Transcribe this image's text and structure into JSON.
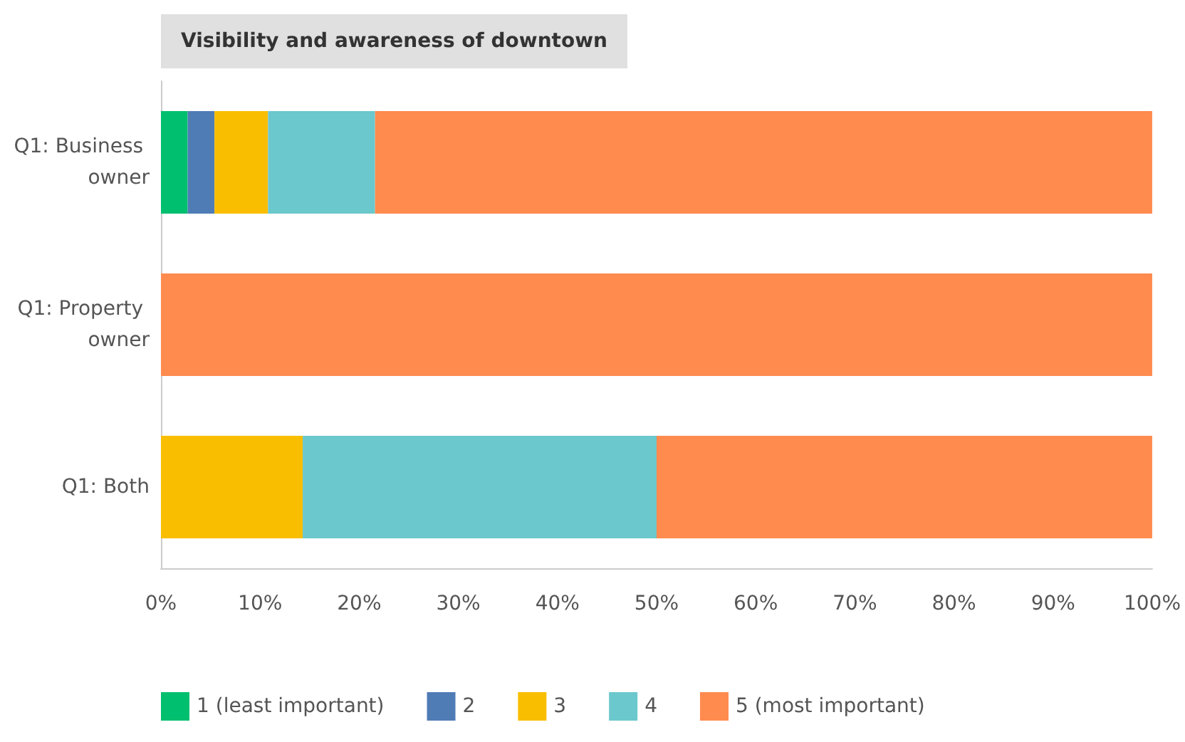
{
  "chart_data": {
    "type": "bar",
    "orientation": "horizontal",
    "stacked": true,
    "title": "Visibility and awareness of downtown",
    "categories": [
      "Q1: Business owner",
      "Q1: Property owner",
      "Q1: Both"
    ],
    "series": [
      {
        "name": "1 (least important)",
        "color": "#00bf6f",
        "values": [
          2.7,
          0,
          0
        ]
      },
      {
        "name": "2",
        "color": "#507cb6",
        "values": [
          2.7,
          0,
          0
        ]
      },
      {
        "name": "3",
        "color": "#f9be00",
        "values": [
          5.4,
          0,
          14.3
        ]
      },
      {
        "name": "4",
        "color": "#6bc8cd",
        "values": [
          10.8,
          0,
          35.7
        ]
      },
      {
        "name": "5 (most important)",
        "color": "#ff8b4f",
        "values": [
          78.4,
          100,
          50
        ]
      }
    ],
    "xlim": [
      0,
      100
    ],
    "xticks": [
      {
        "value": 0,
        "label": "0%"
      },
      {
        "value": 10,
        "label": "10%"
      },
      {
        "value": 20,
        "label": "20%"
      },
      {
        "value": 30,
        "label": "30%"
      },
      {
        "value": 40,
        "label": "40%"
      },
      {
        "value": 50,
        "label": "50%"
      },
      {
        "value": 60,
        "label": "60%"
      },
      {
        "value": 70,
        "label": "70%"
      },
      {
        "value": 80,
        "label": "80%"
      },
      {
        "value": 90,
        "label": "90%"
      },
      {
        "value": 100,
        "label": "100%"
      }
    ],
    "grid": false,
    "legend": "bottom left"
  }
}
